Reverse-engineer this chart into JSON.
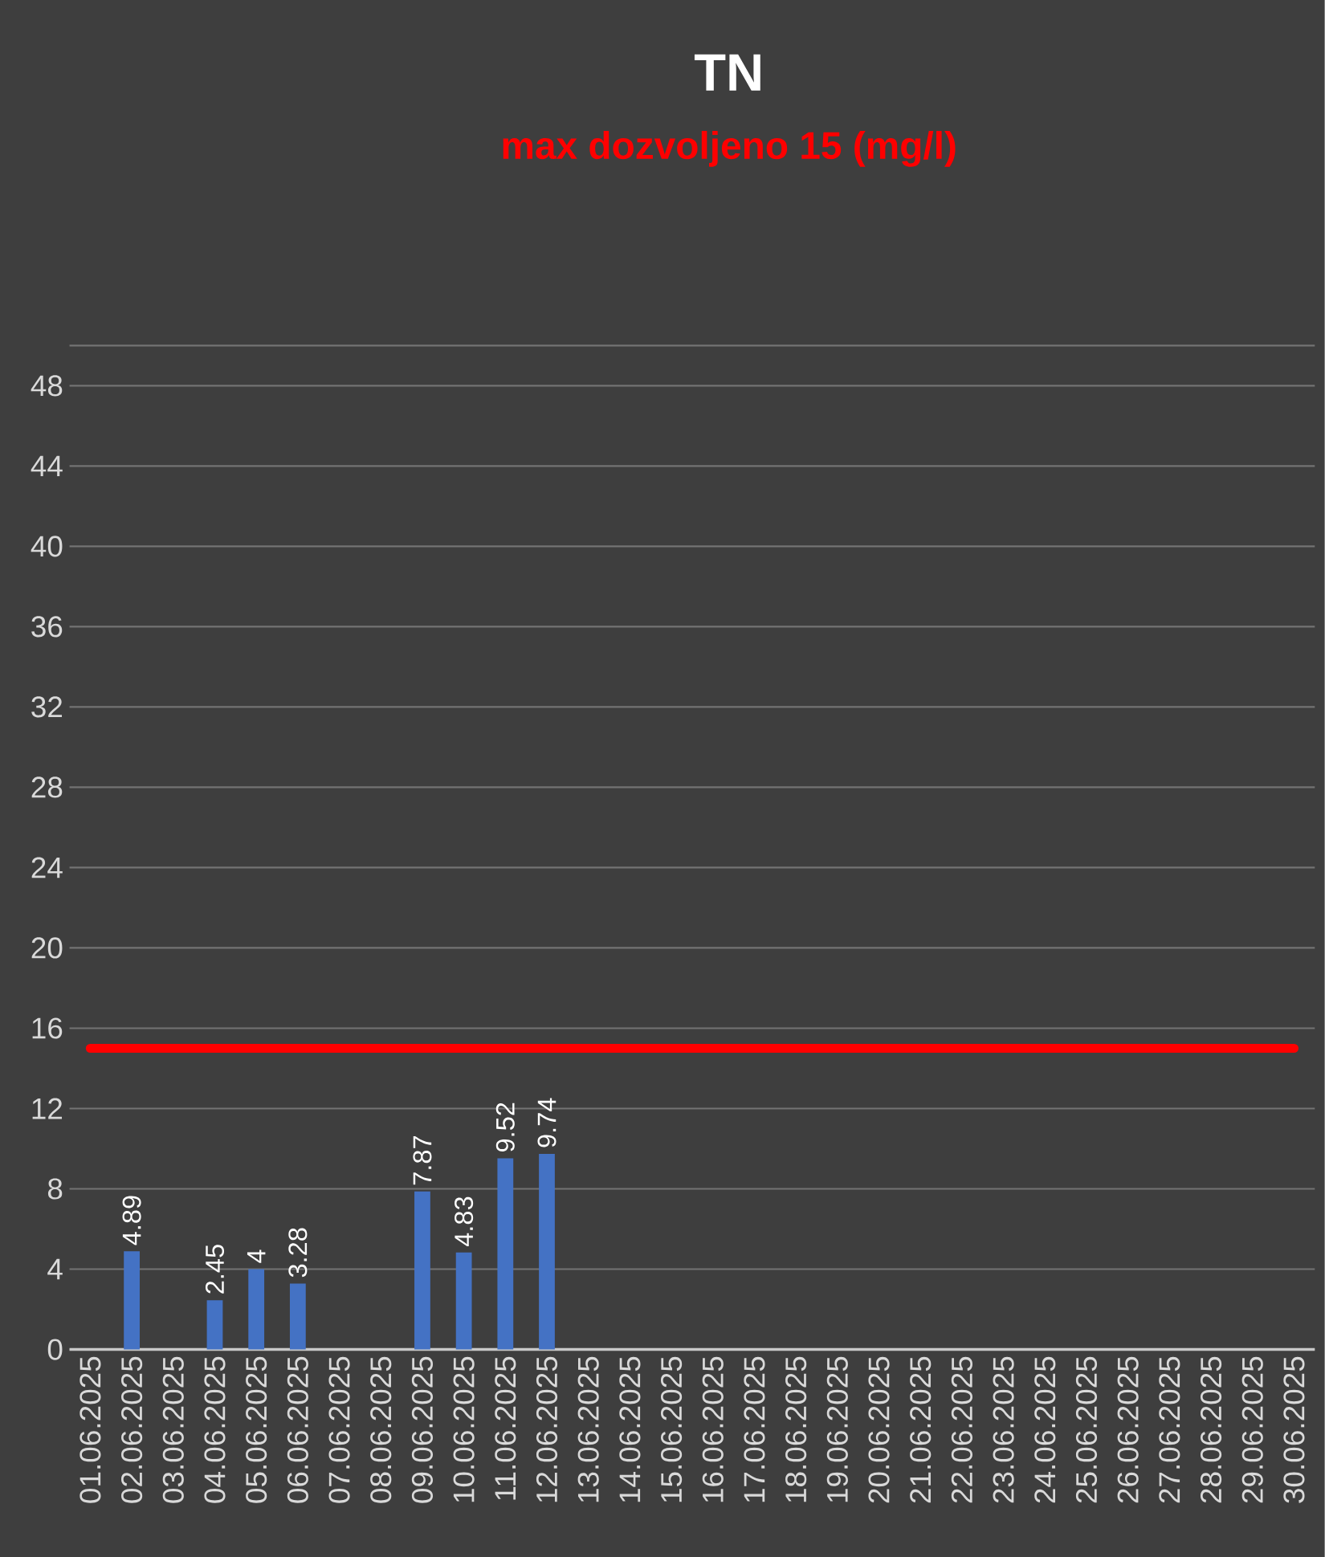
{
  "chart_data": {
    "type": "bar",
    "title": "TN",
    "subtitle": "max dozvoljeno 15 (mg/l)",
    "categories": [
      "01.06.2025",
      "02.06.2025",
      "03.06.2025",
      "04.06.2025",
      "05.06.2025",
      "06.06.2025",
      "07.06.2025",
      "08.06.2025",
      "09.06.2025",
      "10.06.2025",
      "11.06.2025",
      "12.06.2025",
      "13.06.2025",
      "14.06.2025",
      "15.06.2025",
      "16.06.2025",
      "17.06.2025",
      "18.06.2025",
      "19.06.2025",
      "20.06.2025",
      "21.06.2025",
      "22.06.2025",
      "23.06.2025",
      "24.06.2025",
      "25.06.2025",
      "26.06.2025",
      "27.06.2025",
      "28.06.2025",
      "29.06.2025",
      "30.06.2025"
    ],
    "values": [
      null,
      4.89,
      null,
      2.45,
      4,
      3.28,
      null,
      null,
      7.87,
      4.83,
      9.52,
      9.74,
      null,
      null,
      null,
      null,
      null,
      null,
      null,
      null,
      null,
      null,
      null,
      null,
      null,
      null,
      null,
      null,
      null,
      null
    ],
    "color": "#4472c4",
    "ylim": [
      0,
      50
    ],
    "yticks": [
      0,
      4,
      8,
      12,
      16,
      20,
      24,
      28,
      32,
      36,
      40,
      44,
      48
    ],
    "grid": "y",
    "data_labels": true,
    "ref_lines": [
      {
        "axis": "y",
        "value": 15,
        "color": "#ff0000"
      }
    ]
  }
}
